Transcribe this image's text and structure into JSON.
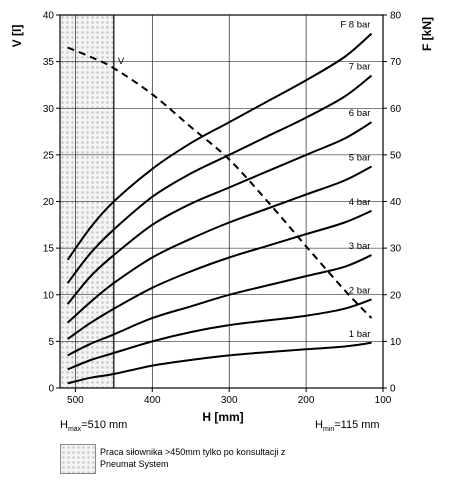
{
  "chart_data": {
    "type": "line",
    "x_axis": {
      "label": "H [mm]",
      "ticks": [
        500,
        400,
        300,
        200,
        100
      ],
      "range": [
        520,
        100
      ],
      "reversed": true
    },
    "y_left": {
      "label": "V [l]",
      "ticks": [
        0,
        5,
        10,
        15,
        20,
        25,
        30,
        35,
        40
      ],
      "range": [
        0,
        40
      ]
    },
    "y_right": {
      "label": "F [kN]",
      "ticks": [
        0,
        10,
        20,
        30,
        40,
        50,
        60,
        70,
        80
      ],
      "range": [
        0,
        80
      ]
    },
    "grid": true,
    "hatched_region": {
      "from_h": 520,
      "to_h": 450
    },
    "force_series": [
      {
        "name": "F 8 bar",
        "axis": "right",
        "x": [
          510,
          480,
          450,
          400,
          350,
          300,
          250,
          200,
          150,
          115
        ],
        "values": [
          27.5,
          34.5,
          40,
          47,
          52.5,
          57,
          61.5,
          66,
          71,
          76
        ]
      },
      {
        "name": "7 bar",
        "axis": "right",
        "x": [
          510,
          480,
          450,
          400,
          350,
          300,
          250,
          200,
          150,
          115
        ],
        "values": [
          22.5,
          29,
          34,
          41,
          46,
          50,
          54,
          58,
          62.5,
          67
        ]
      },
      {
        "name": "6 bar",
        "axis": "right",
        "x": [
          510,
          480,
          450,
          400,
          350,
          300,
          250,
          200,
          150,
          115
        ],
        "values": [
          18,
          24,
          28.5,
          35,
          39.5,
          43,
          46.5,
          50,
          53.5,
          57
        ]
      },
      {
        "name": "5 bar",
        "axis": "right",
        "x": [
          510,
          480,
          450,
          400,
          350,
          300,
          250,
          200,
          150,
          115
        ],
        "values": [
          14,
          18.5,
          22.5,
          28,
          32,
          35.5,
          38.5,
          41.5,
          44.5,
          47.5
        ]
      },
      {
        "name": "4 bar",
        "axis": "right",
        "x": [
          510,
          480,
          450,
          400,
          350,
          300,
          250,
          200,
          150,
          115
        ],
        "values": [
          10.5,
          14,
          17,
          21.5,
          25,
          28,
          30.5,
          33,
          35.5,
          38
        ]
      },
      {
        "name": "3 bar",
        "axis": "right",
        "x": [
          510,
          480,
          450,
          400,
          350,
          300,
          250,
          200,
          150,
          115
        ],
        "values": [
          7,
          9.5,
          11.5,
          15,
          17.5,
          20,
          22,
          24,
          26,
          28.5
        ]
      },
      {
        "name": "2 bar",
        "axis": "right",
        "x": [
          510,
          480,
          450,
          400,
          350,
          300,
          250,
          200,
          150,
          115
        ],
        "values": [
          4,
          6,
          7.5,
          10,
          12,
          13.5,
          14.5,
          15.5,
          17,
          19
        ]
      },
      {
        "name": "1 bar",
        "axis": "right",
        "x": [
          510,
          480,
          450,
          400,
          350,
          300,
          250,
          200,
          150,
          115
        ],
        "values": [
          1,
          2.2,
          3,
          4.8,
          6,
          7,
          7.7,
          8.3,
          8.9,
          9.7
        ]
      }
    ],
    "volume_series": {
      "name": "V",
      "axis": "left",
      "style": "dashed",
      "x": [
        510,
        480,
        450,
        400,
        350,
        300,
        250,
        200,
        150,
        115
      ],
      "values": [
        36.5,
        35.5,
        34.3,
        31.5,
        28,
        24.5,
        20,
        15.2,
        10.5,
        7.5
      ]
    },
    "annotations": {
      "h_max": {
        "main": "H",
        "sub": "max",
        "rest": "=510 mm"
      },
      "h_min": {
        "main": "H",
        "sub": "min",
        "rest": "=115 mm"
      }
    },
    "legend": {
      "text": "Praca siłownika >450mm tylko po konsultacji z Pneumat System"
    }
  }
}
